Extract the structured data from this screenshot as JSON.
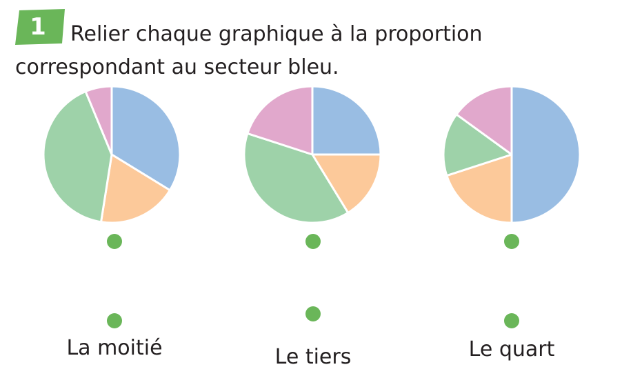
{
  "exercise": {
    "number": "1",
    "instruction": "Relier chaque graphique à la proportion correspondant au secteur bleu."
  },
  "colors": {
    "badge": "#6ab659",
    "blue": "#99bde3",
    "orange": "#fcc99a",
    "green": "#9ed2a9",
    "pink": "#e1a8cc",
    "dot": "#6ab659"
  },
  "charts": [
    {
      "slices": [
        {
          "color": "blue",
          "fraction": 0.3375
        },
        {
          "color": "orange",
          "fraction": 0.1875
        },
        {
          "color": "green",
          "fraction": 0.4125
        },
        {
          "color": "pink",
          "fraction": 0.0625
        }
      ]
    },
    {
      "slices": [
        {
          "color": "blue",
          "fraction": 0.25
        },
        {
          "color": "orange",
          "fraction": 0.1625
        },
        {
          "color": "green",
          "fraction": 0.3875
        },
        {
          "color": "pink",
          "fraction": 0.2
        }
      ]
    },
    {
      "slices": [
        {
          "color": "blue",
          "fraction": 0.5
        },
        {
          "color": "orange",
          "fraction": 0.2
        },
        {
          "color": "green",
          "fraction": 0.15
        },
        {
          "color": "pink",
          "fraction": 0.15
        }
      ]
    }
  ],
  "proportions": [
    "La moitié",
    "Le tiers",
    "Le quart"
  ]
}
